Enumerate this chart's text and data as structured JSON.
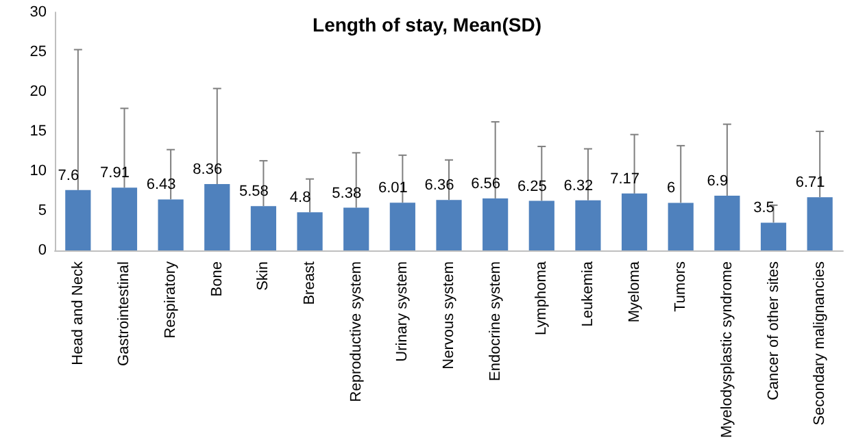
{
  "chart_data": {
    "type": "bar",
    "title": "Length of stay, Mean(SD)",
    "categories": [
      "Head and Neck",
      "Gastrointestinal",
      "Respiratory",
      "Bone",
      "Skin",
      "Breast",
      "Reproductive system",
      "Urinary system",
      "Nervous system",
      "Endocrine system",
      "Lymphoma",
      "Leukemia",
      "Myeloma",
      "Tumors",
      "Myelodysplastic syndrome",
      "Cancer of other sites",
      "Secondary malignancies"
    ],
    "values": [
      7.6,
      7.91,
      6.43,
      8.36,
      5.58,
      4.8,
      5.38,
      6.01,
      6.36,
      6.56,
      6.25,
      6.32,
      7.17,
      6,
      6.9,
      3.5,
      6.71
    ],
    "errors": [
      [
        7.6,
        25.3
      ],
      [
        7.91,
        17.9
      ],
      [
        6.43,
        12.7
      ],
      [
        8.36,
        20.4
      ],
      [
        5.58,
        11.3
      ],
      [
        4.8,
        9.0
      ],
      [
        5.38,
        12.3
      ],
      [
        6.01,
        12.0
      ],
      [
        6.36,
        11.4
      ],
      [
        6.56,
        16.2
      ],
      [
        6.25,
        13.1
      ],
      [
        6.32,
        12.8
      ],
      [
        7.17,
        14.6
      ],
      [
        6,
        13.2
      ],
      [
        6.9,
        15.9
      ],
      [
        3.5,
        5.7
      ],
      [
        6.71,
        15.0
      ]
    ],
    "color": "#4f81bd",
    "ylim": [
      0,
      30
    ],
    "yticks": [
      0,
      5,
      10,
      15,
      20,
      25,
      30
    ],
    "grid": false,
    "data_labels": true
  }
}
